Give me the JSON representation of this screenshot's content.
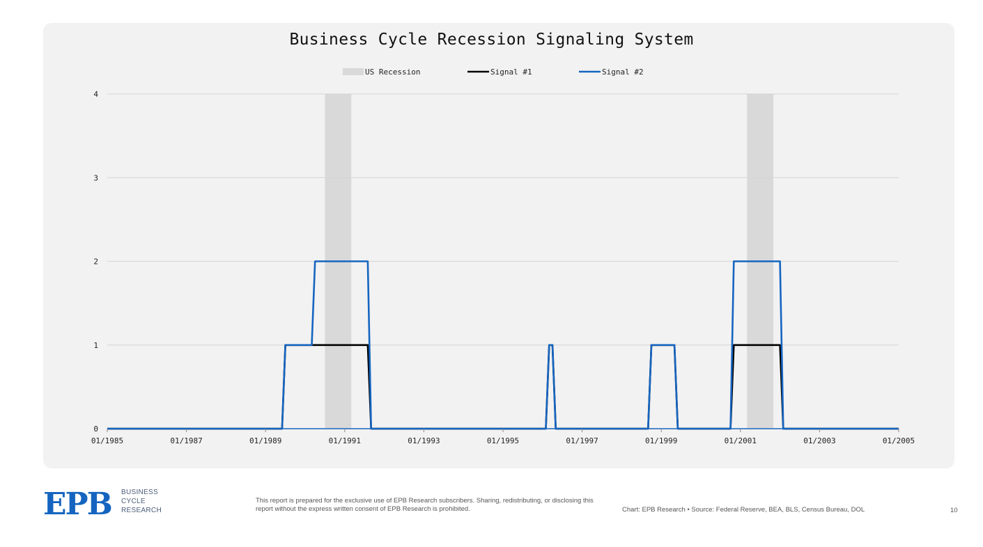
{
  "chart_data": {
    "type": "line",
    "title": "Business Cycle Recession Signaling System",
    "legend": {
      "placement": "top-center",
      "entries": [
        "US Recession",
        "Signal #1",
        "Signal #2"
      ]
    },
    "x_range": [
      "1985-01",
      "2005-01"
    ],
    "x_ticks": [
      "01/1985",
      "01/1987",
      "01/1989",
      "01/1991",
      "01/1993",
      "01/1995",
      "01/1997",
      "01/1999",
      "01/2001",
      "01/2003",
      "01/2005"
    ],
    "ylim": [
      0,
      4
    ],
    "y_ticks": [
      "0",
      "1",
      "2",
      "3",
      "4"
    ],
    "grid": "horizontal",
    "recessions": [
      {
        "start": "1990-07",
        "end": "1991-03"
      },
      {
        "start": "2001-03",
        "end": "2001-11"
      }
    ],
    "series": [
      {
        "name": "Signal #1",
        "color": "#000000",
        "points": [
          [
            "1985-01",
            0
          ],
          [
            "1989-06",
            0
          ],
          [
            "1989-07",
            1
          ],
          [
            "1991-08",
            1
          ],
          [
            "1991-09",
            0
          ],
          [
            "1996-02",
            0
          ],
          [
            "1996-03",
            1
          ],
          [
            "1996-04",
            1
          ],
          [
            "1996-05",
            0
          ],
          [
            "1998-09",
            0
          ],
          [
            "1998-10",
            1
          ],
          [
            "1999-05",
            1
          ],
          [
            "1999-06",
            0
          ],
          [
            "2000-10",
            0
          ],
          [
            "2000-11",
            1
          ],
          [
            "2002-01",
            1
          ],
          [
            "2002-02",
            0
          ],
          [
            "2005-01",
            0
          ]
        ]
      },
      {
        "name": "Signal #2",
        "color": "#1565c0",
        "points": [
          [
            "1985-01",
            0
          ],
          [
            "1989-06",
            0
          ],
          [
            "1989-07",
            1
          ],
          [
            "1990-03",
            1
          ],
          [
            "1990-04",
            2
          ],
          [
            "1991-08",
            2
          ],
          [
            "1991-09",
            0
          ],
          [
            "1996-02",
            0
          ],
          [
            "1996-03",
            1
          ],
          [
            "1996-04",
            1
          ],
          [
            "1996-05",
            0
          ],
          [
            "1998-09",
            0
          ],
          [
            "1998-10",
            1
          ],
          [
            "1999-05",
            1
          ],
          [
            "1999-06",
            0
          ],
          [
            "2000-10",
            0
          ],
          [
            "2000-11",
            2
          ],
          [
            "2002-01",
            2
          ],
          [
            "2002-02",
            0
          ],
          [
            "2005-01",
            0
          ]
        ]
      }
    ],
    "colors": {
      "recession": "#d9d9d9",
      "grid": "#d4d4d4",
      "axis": "#1565c0"
    }
  },
  "footer": {
    "logo_text": "EPB",
    "logo_sub": [
      "BUSINESS",
      "CYCLE",
      "RESEARCH"
    ],
    "disclaimer": "This report is prepared for the exclusive use of EPB Research subscribers. Sharing, redistributing, or disclosing this report without the express written consent of EPB Research is prohibited.",
    "credit": "Chart: EPB Research  •  Source: Federal Reserve, BEA, BLS, Census Bureau, DOL",
    "page_number": "10"
  },
  "brand_color": "#1565c0"
}
